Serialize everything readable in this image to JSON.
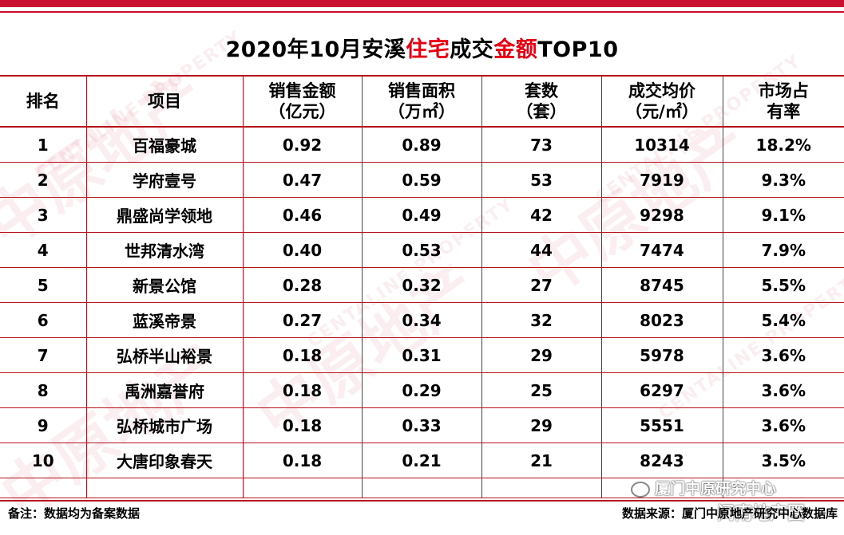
{
  "title": {
    "part1": "2020年10月安溪",
    "part2": "住宅",
    "part3": "成交",
    "part4": "金额",
    "part5": "TOP10"
  },
  "colors": {
    "accent": "#c8102e",
    "title_highlight": "#e60012"
  },
  "headers": {
    "rank": "排名",
    "project": "项目",
    "amount_l1": "销售金额",
    "amount_l2": "（亿元）",
    "area_l1": "销售面积",
    "area_l2": "（万㎡）",
    "units_l1": "套数",
    "units_l2": "（套）",
    "price_l1": "成交均价",
    "price_l2": "（元/㎡）",
    "share_l1": "市场占",
    "share_l2": "有率"
  },
  "rows": [
    {
      "rank": "1",
      "project": "百福豪城",
      "amount": "0.92",
      "area": "0.89",
      "units": "73",
      "price": "10314",
      "share": "18.2%"
    },
    {
      "rank": "2",
      "project": "学府壹号",
      "amount": "0.47",
      "area": "0.59",
      "units": "53",
      "price": "7919",
      "share": "9.3%"
    },
    {
      "rank": "3",
      "project": "鼎盛尚学领地",
      "amount": "0.46",
      "area": "0.49",
      "units": "42",
      "price": "9298",
      "share": "9.1%"
    },
    {
      "rank": "4",
      "project": "世邦清水湾",
      "amount": "0.40",
      "area": "0.53",
      "units": "44",
      "price": "7474",
      "share": "7.9%"
    },
    {
      "rank": "5",
      "project": "新景公馆",
      "amount": "0.28",
      "area": "0.32",
      "units": "27",
      "price": "8745",
      "share": "5.5%"
    },
    {
      "rank": "6",
      "project": "蓝溪帝景",
      "amount": "0.27",
      "area": "0.34",
      "units": "32",
      "price": "8023",
      "share": "5.4%"
    },
    {
      "rank": "7",
      "project": "弘桥半山裕景",
      "amount": "0.18",
      "area": "0.31",
      "units": "29",
      "price": "5978",
      "share": "3.6%"
    },
    {
      "rank": "8",
      "project": "禹洲嘉誉府",
      "amount": "0.18",
      "area": "0.29",
      "units": "25",
      "price": "6297",
      "share": "3.6%"
    },
    {
      "rank": "9",
      "project": "弘桥城市广场",
      "amount": "0.18",
      "area": "0.33",
      "units": "29",
      "price": "5551",
      "share": "3.6%"
    },
    {
      "rank": "10",
      "project": "大唐印象春天",
      "amount": "0.18",
      "area": "0.21",
      "units": "21",
      "price": "8243",
      "share": "3.5%"
    }
  ],
  "footer": {
    "note": "备注：数据均为备案数据",
    "source": "数据来源：厦门中原地产研究中心数据库",
    "wechat": "厦门中原研究中心",
    "account": "闽南地产圈"
  },
  "watermark": {
    "text": "中原地产",
    "latin": "CENTALINE PROPERTY"
  }
}
